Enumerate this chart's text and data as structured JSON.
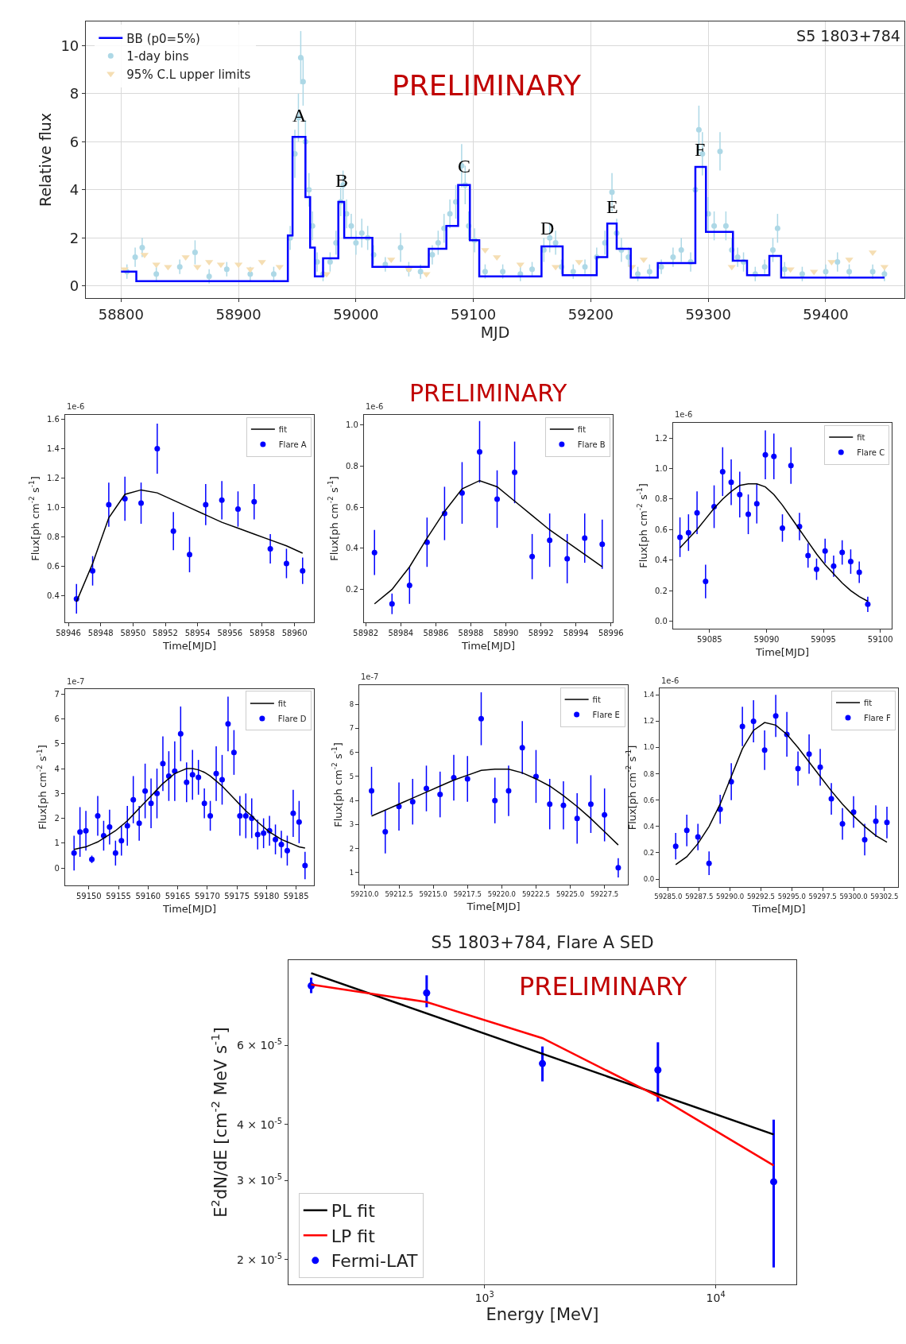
{
  "chart_data": [
    {
      "type": "step",
      "title": "S5 1803+784",
      "xlabel": "MJD",
      "ylabel": "Relative flux",
      "xlim": [
        58770,
        59467
      ],
      "xticks": [
        58800,
        58900,
        59000,
        59100,
        59200,
        59300,
        59400
      ],
      "ylim": [
        -0.5,
        11
      ],
      "yticks": [
        0,
        2,
        4,
        6,
        8,
        10
      ],
      "grid": true,
      "legend": "top left",
      "annotations": [
        {
          "text": "A",
          "x": 58952,
          "y": 6.6
        },
        {
          "text": "B",
          "x": 58988,
          "y": 3.9
        },
        {
          "text": "C",
          "x": 59092,
          "y": 4.5
        },
        {
          "text": "D",
          "x": 59163,
          "y": 1.9
        },
        {
          "text": "E",
          "x": 59218,
          "y": 2.8
        },
        {
          "text": "F",
          "x": 59293,
          "y": 5.2
        },
        "PRELIMINARY"
      ],
      "series": [
        {
          "name": "BB (p0=5%)",
          "type": "step",
          "color": "#0000ff",
          "x": [
            58800,
            58813,
            58942,
            58946,
            58957,
            58961,
            58965,
            58972,
            58985,
            58990,
            59014,
            59062,
            59077,
            59087,
            59097,
            59105,
            59158,
            59176,
            59205,
            59214,
            59222,
            59234,
            59257,
            59289,
            59298,
            59321,
            59333,
            59352,
            59362,
            59450
          ],
          "values": [
            0.6,
            0.2,
            2.1,
            6.2,
            3.7,
            1.6,
            0.4,
            1.15,
            3.5,
            2.0,
            0.8,
            1.55,
            2.5,
            4.2,
            1.9,
            0.4,
            1.65,
            0.45,
            1.2,
            2.6,
            1.55,
            0.35,
            0.95,
            4.95,
            2.25,
            1.05,
            0.45,
            1.25,
            0.35,
            0.35
          ]
        },
        {
          "name": "1-day bins",
          "type": "scatter",
          "marker": "circle",
          "color": "#add8e6",
          "x": [
            58805,
            58812,
            58818,
            58830,
            58850,
            58863,
            58875,
            58890,
            58910,
            58930,
            58944,
            58948,
            58951,
            58953,
            58955,
            58957,
            58960,
            58963,
            58967,
            58972,
            58978,
            58983,
            58987,
            58989,
            58992,
            58996,
            59000,
            59005,
            59010,
            59015,
            59025,
            59038,
            59045,
            59055,
            59065,
            59070,
            59075,
            59080,
            59085,
            59090,
            59093,
            59096,
            59101,
            59110,
            59125,
            59140,
            59150,
            59160,
            59165,
            59170,
            59175,
            59185,
            59195,
            59205,
            59212,
            59218,
            59222,
            59226,
            59232,
            59240,
            59250,
            59260,
            59270,
            59277,
            59285,
            59289,
            59292,
            59295,
            59300,
            59305,
            59310,
            59315,
            59320,
            59325,
            59330,
            59340,
            59348,
            59355,
            59359,
            59365,
            59380,
            59400,
            59410,
            59420,
            59440,
            59450
          ],
          "values": [
            0.6,
            1.2,
            1.6,
            0.5,
            0.8,
            1.4,
            0.4,
            0.7,
            0.5,
            0.5,
            2.0,
            5.5,
            7.0,
            9.5,
            8.5,
            6.0,
            4.0,
            2.5,
            1.0,
            0.5,
            1.0,
            1.8,
            3.5,
            4.2,
            3.0,
            2.5,
            1.8,
            2.2,
            2.0,
            1.3,
            0.9,
            1.6,
            0.7,
            0.6,
            1.3,
            1.8,
            2.4,
            3.0,
            3.5,
            5.0,
            4.2,
            2.5,
            1.9,
            0.6,
            0.6,
            0.5,
            0.7,
            1.5,
            2.0,
            1.8,
            0.8,
            0.6,
            0.8,
            1.2,
            1.8,
            3.9,
            2.2,
            1.5,
            1.2,
            0.5,
            0.6,
            0.8,
            1.2,
            1.5,
            1.0,
            4.0,
            6.5,
            5.5,
            3.0,
            2.5,
            5.6,
            2.5,
            1.5,
            1.2,
            1.0,
            0.5,
            0.8,
            1.5,
            2.4,
            0.7,
            0.5,
            0.6,
            1.0,
            0.6,
            0.6,
            0.5
          ],
          "errors": [
            0.3,
            0.4,
            0.4,
            0.3,
            0.3,
            0.5,
            0.3,
            0.3,
            0.3,
            0.3,
            0.5,
            1.0,
            1.0,
            1.1,
            1.0,
            0.9,
            0.7,
            0.6,
            0.4,
            0.3,
            0.4,
            0.5,
            0.6,
            0.6,
            0.6,
            0.5,
            0.5,
            0.6,
            0.5,
            0.4,
            0.3,
            0.6,
            0.3,
            0.3,
            0.4,
            0.5,
            0.6,
            0.6,
            0.7,
            0.9,
            0.8,
            0.6,
            0.5,
            0.3,
            0.3,
            0.3,
            0.3,
            0.5,
            0.6,
            0.5,
            0.3,
            0.3,
            0.3,
            0.4,
            0.5,
            0.8,
            0.6,
            0.5,
            0.4,
            0.3,
            0.3,
            0.3,
            0.4,
            0.5,
            0.4,
            0.8,
            1.0,
            0.9,
            0.7,
            0.6,
            0.8,
            0.6,
            0.5,
            0.4,
            0.4,
            0.3,
            0.3,
            0.5,
            0.6,
            0.3,
            0.3,
            0.3,
            0.4,
            0.3,
            0.3,
            0.3
          ]
        },
        {
          "name": "95% C.L upper limits",
          "type": "scatter",
          "marker": "triangle",
          "color": "#f5deb3",
          "x": [
            58803,
            58820,
            58830,
            58840,
            58855,
            58865,
            58875,
            58885,
            58900,
            58910,
            58920,
            58935,
            58975,
            59030,
            59045,
            59060,
            59110,
            59120,
            59140,
            59170,
            59190,
            59235,
            59245,
            59320,
            59370,
            59390,
            59405,
            59420,
            59440,
            59450
          ],
          "values": [
            0.7,
            1.3,
            0.9,
            0.8,
            1.2,
            0.8,
            1.0,
            0.9,
            0.9,
            0.7,
            1.0,
            0.8,
            0.5,
            1.1,
            0.7,
            0.5,
            1.5,
            1.2,
            0.9,
            0.8,
            1.0,
            0.8,
            1.1,
            0.8,
            0.7,
            0.6,
            1.0,
            1.1,
            1.4,
            0.8
          ]
        }
      ]
    },
    {
      "type": "scatter",
      "xlabel": "Time[MJD]",
      "ylabel": "Flux[ph cm$^{-2}$ s$^{-1}$]",
      "annotations": [
        "1e-6"
      ],
      "legend": "top right",
      "x": [
        58946.5,
        58947.5,
        58948.5,
        58949.5,
        58950.5,
        58951.5,
        58952.5,
        58953.5,
        58954.5,
        58955.5,
        58956.5,
        58957.5,
        58958.5,
        58959.5,
        58960.5
      ],
      "xlim": [
        58945.8,
        58961.2
      ],
      "xticks": [
        58946,
        58948,
        58950,
        58952,
        58954,
        58956,
        58958,
        58960
      ],
      "ylim": [
        0.22,
        1.63
      ],
      "yticks": [
        0.4,
        0.6,
        0.8,
        {
          "value": 1,
          "label": "1.0"
        },
        1.2,
        1.4,
        1.6
      ],
      "series": [
        {
          "name": "fit",
          "type": "line",
          "color": "#000000",
          "values": [
            0.36,
            0.62,
            0.93,
            1.09,
            1.12,
            1.1,
            1.05,
            1.0,
            0.95,
            0.9,
            0.86,
            0.82,
            0.78,
            0.74,
            0.69
          ]
        },
        {
          "name": "Flare A",
          "marker": "circle",
          "color": "#0000ff",
          "values": [
            0.38,
            0.57,
            1.02,
            1.06,
            1.03,
            1.4,
            0.84,
            0.68,
            1.02,
            1.05,
            0.99,
            1.04,
            0.72,
            0.62,
            0.57
          ],
          "errors": [
            0.1,
            0.1,
            0.15,
            0.15,
            0.14,
            0.17,
            0.13,
            0.12,
            0.14,
            0.13,
            0.12,
            0.12,
            0.1,
            0.1,
            0.09
          ]
        }
      ]
    },
    {
      "type": "scatter",
      "xlabel": "Time[MJD]",
      "ylabel": "Flux[ph cm$^{-2}$ s$^{-1}$]",
      "annotations": [
        "1e-6",
        "PRELIMINARY"
      ],
      "legend": "top right",
      "x": [
        58982.5,
        58983.5,
        58984.5,
        58985.5,
        58986.5,
        58987.5,
        58988.5,
        58989.5,
        58990.5,
        58991.5,
        58992.5,
        58993.5,
        58994.5,
        58995.5
      ],
      "xlim": [
        58981.9,
        58996.1
      ],
      "xticks": [
        58982,
        58984,
        58986,
        58988,
        58990,
        58992,
        58994,
        58996
      ],
      "ylim": [
        0.04,
        1.05
      ],
      "yticks": [
        0.2,
        0.4,
        0.6,
        0.8,
        {
          "value": 1,
          "label": "1.0"
        }
      ],
      "series": [
        {
          "name": "fit",
          "type": "line",
          "color": "#000000",
          "values": [
            0.13,
            0.2,
            0.31,
            0.45,
            0.58,
            0.69,
            0.73,
            0.7,
            0.63,
            0.56,
            0.49,
            0.43,
            0.37,
            0.31
          ]
        },
        {
          "name": "Flare B",
          "marker": "circle",
          "color": "#0000ff",
          "values": [
            0.38,
            0.13,
            0.22,
            0.43,
            0.57,
            0.67,
            0.87,
            0.64,
            0.77,
            0.36,
            0.44,
            0.35,
            0.45,
            0.42
          ],
          "errors": [
            0.11,
            0.05,
            0.09,
            0.12,
            0.13,
            0.15,
            0.15,
            0.14,
            0.15,
            0.11,
            0.13,
            0.12,
            0.12,
            0.12
          ]
        }
      ]
    },
    {
      "type": "scatter",
      "xlabel": "Time[MJD]",
      "ylabel": "Flux[ph cm$^{-2}$ s$^{-1}$]",
      "annotations": [
        "1e-6"
      ],
      "legend": "top right",
      "x": [
        59082.4,
        59083.15,
        59083.9,
        59084.65,
        59085.4,
        59086.15,
        59086.9,
        59087.65,
        59088.4,
        59089.15,
        59089.9,
        59090.65,
        59091.4,
        59092.15,
        59092.9,
        59093.65,
        59094.4,
        59095.15,
        59095.9,
        59096.65,
        59097.4,
        59098.15,
        59098.9
      ],
      "xlim": [
        59081.8,
        59101
      ],
      "xticks": [
        59085,
        59090,
        59095,
        59100
      ],
      "ylim": [
        -0.05,
        1.3
      ],
      "yticks": [
        {
          "value": 0,
          "label": "0.0"
        },
        0.2,
        0.4,
        0.6,
        0.8,
        {
          "value": 1,
          "label": "1.0"
        },
        1.2
      ],
      "series": [
        {
          "name": "fit",
          "type": "line",
          "color": "#000000",
          "values": [
            0.48,
            0.54,
            0.6,
            0.67,
            0.74,
            0.8,
            0.85,
            0.89,
            0.9,
            0.9,
            0.88,
            0.83,
            0.76,
            0.68,
            0.6,
            0.52,
            0.44,
            0.37,
            0.31,
            0.25,
            0.2,
            0.16,
            0.13
          ]
        },
        {
          "name": "Flare C",
          "marker": "circle",
          "color": "#0000ff",
          "values": [
            0.55,
            0.58,
            0.71,
            0.26,
            0.75,
            0.98,
            0.91,
            0.83,
            0.7,
            0.77,
            1.09,
            1.08,
            0.61,
            1.02,
            0.62,
            0.43,
            0.34,
            0.46,
            0.36,
            0.45,
            0.39,
            0.32,
            0.11
          ],
          "errors": [
            0.13,
            0.12,
            0.14,
            0.11,
            0.14,
            0.16,
            0.15,
            0.15,
            0.13,
            0.13,
            0.16,
            0.15,
            0.09,
            0.12,
            0.09,
            0.08,
            0.07,
            0.08,
            0.07,
            0.08,
            0.08,
            0.07,
            0.05
          ]
        }
      ]
    },
    {
      "type": "scatter",
      "xlabel": "Time[MJD]",
      "ylabel": "Flux[ph cm$^{-2}$ s$^{-1}$]",
      "annotations": [
        "1e-7"
      ],
      "legend": "top right",
      "x": [
        59147.5,
        59148.5,
        59149.5,
        59150.5,
        59151.5,
        59152.5,
        59153.5,
        59154.5,
        59155.5,
        59156.5,
        59157.5,
        59158.5,
        59159.5,
        59160.5,
        59161.5,
        59162.5,
        59163.5,
        59164.5,
        59165.5,
        59166.5,
        59167.5,
        59168.5,
        59169.5,
        59170.5,
        59171.5,
        59172.5,
        59173.5,
        59174.5,
        59175.5,
        59176.5,
        59177.5,
        59178.5,
        59179.5,
        59180.5,
        59181.5,
        59182.5,
        59183.5,
        59184.5,
        59185.5,
        59186.5
      ],
      "xlim": [
        59146,
        59188
      ],
      "xticks": [
        59150,
        59155,
        59160,
        59165,
        59170,
        59175,
        59180,
        59185
      ],
      "ylim": [
        -0.7,
        7.2
      ],
      "yticks": [
        0,
        1,
        2,
        3,
        4,
        5,
        6,
        7
      ],
      "series": [
        {
          "name": "fit",
          "type": "line",
          "color": "#000000",
          "values": [
            0.75,
            0.8,
            0.85,
            0.95,
            1.05,
            1.2,
            1.35,
            1.5,
            1.7,
            1.9,
            2.15,
            2.4,
            2.65,
            2.9,
            3.15,
            3.4,
            3.6,
            3.8,
            3.9,
            4.0,
            4.0,
            3.95,
            3.85,
            3.7,
            3.5,
            3.3,
            3.05,
            2.8,
            2.55,
            2.3,
            2.1,
            1.85,
            1.65,
            1.45,
            1.3,
            1.15,
            1.05,
            0.95,
            0.85,
            0.8
          ]
        },
        {
          "name": "Flare D",
          "marker": "circle",
          "color": "#0000ff",
          "values": [
            0.6,
            1.45,
            1.5,
            0.35,
            2.1,
            1.3,
            1.65,
            0.6,
            1.1,
            1.7,
            2.75,
            1.8,
            3.1,
            2.6,
            3.0,
            4.2,
            3.7,
            3.9,
            5.4,
            3.45,
            3.75,
            3.65,
            2.6,
            2.1,
            3.8,
            3.55,
            5.8,
            4.65,
            2.1,
            2.1,
            2.0,
            1.35,
            1.4,
            1.5,
            1.15,
            0.95,
            0.7,
            2.2,
            1.85,
            0.1
          ],
          "errors": [
            0.7,
            1.0,
            0.8,
            0.15,
            0.8,
            0.6,
            0.7,
            0.5,
            0.6,
            0.8,
            0.95,
            0.7,
            1.1,
            1.0,
            1.0,
            1.1,
            1.0,
            1.2,
            1.1,
            0.8,
            1.0,
            0.7,
            0.6,
            0.6,
            1.1,
            1.0,
            1.1,
            0.9,
            0.8,
            0.9,
            0.8,
            0.6,
            0.6,
            0.6,
            0.6,
            0.55,
            0.6,
            0.95,
            0.85,
            0.55
          ]
        }
      ]
    },
    {
      "type": "scatter",
      "xlabel": "Time[MJD]",
      "ylabel": "Flux[ph cm$^{-2}$ s$^{-1}$]",
      "annotations": [
        "1e-7"
      ],
      "legend": "top right",
      "x": [
        59210.5,
        59211.5,
        59212.5,
        59213.5,
        59214.5,
        59215.5,
        59216.5,
        59217.5,
        59218.5,
        59219.5,
        59220.5,
        59221.5,
        59222.5,
        59223.5,
        59224.5,
        59225.5,
        59226.5,
        59227.5,
        59228.5
      ],
      "xlim": [
        59209.6,
        59229.2
      ],
      "xticks": [
        {
          "value": 59210,
          "label": "59210.0"
        },
        59212.5,
        {
          "value": 59215,
          "label": "59215.0"
        },
        59217.5,
        {
          "value": 59220,
          "label": "59220.0"
        },
        59222.5,
        {
          "value": 59225,
          "label": "59225.0"
        },
        59227.5
      ],
      "ylim": [
        0.5,
        8.8
      ],
      "yticks": [
        1,
        2,
        3,
        4,
        5,
        6,
        7,
        8
      ],
      "series": [
        {
          "name": "fit",
          "type": "line",
          "color": "#000000",
          "values": [
            3.35,
            3.6,
            3.85,
            4.1,
            4.35,
            4.6,
            4.85,
            5.05,
            5.25,
            5.3,
            5.3,
            5.15,
            4.9,
            4.6,
            4.2,
            3.75,
            3.25,
            2.7,
            2.15
          ]
        },
        {
          "name": "Flare E",
          "marker": "circle",
          "color": "#0000ff",
          "values": [
            4.4,
            2.7,
            3.75,
            3.95,
            4.5,
            4.25,
            4.95,
            4.9,
            7.4,
            4.0,
            4.4,
            6.2,
            5.0,
            3.85,
            3.8,
            3.25,
            3.85,
            3.4,
            1.2
          ],
          "errors": [
            1.0,
            0.9,
            1.0,
            0.95,
            0.95,
            0.95,
            0.95,
            0.95,
            1.1,
            0.95,
            1.05,
            1.1,
            1.1,
            1.05,
            1.0,
            1.05,
            1.2,
            1.1,
            0.4
          ]
        }
      ]
    },
    {
      "type": "scatter",
      "xlabel": "Time[MJD]",
      "ylabel": "Flux[ph cm$^{-2}$ s$^{-1}$]",
      "annotations": [
        "1e-6"
      ],
      "legend": "top right",
      "x": [
        59285.6,
        59286.5,
        59287.4,
        59288.3,
        59289.2,
        59290.1,
        59291.0,
        59291.9,
        59292.8,
        59293.7,
        59294.6,
        59295.5,
        59296.4,
        59297.3,
        59298.2,
        59299.1,
        59300.0,
        59300.9,
        59301.8,
        59302.7
      ],
      "xlim": [
        59284.3,
        59303.6
      ],
      "xticks": [
        {
          "value": 59285,
          "label": "59285.0"
        },
        59287.5,
        {
          "value": 59290,
          "label": "59290.0"
        },
        59292.5,
        {
          "value": 59295,
          "label": "59295.0"
        },
        59297.5,
        {
          "value": 59300,
          "label": "59300.0"
        },
        59302.5
      ],
      "ylim": [
        -0.06,
        1.45
      ],
      "yticks": [
        {
          "value": 0,
          "label": "0.0"
        },
        0.2,
        0.4,
        0.6,
        0.8,
        {
          "value": 1,
          "label": "1.0"
        },
        1.2,
        1.4
      ],
      "series": [
        {
          "name": "fit",
          "type": "line",
          "color": "#000000",
          "values": [
            0.11,
            0.17,
            0.27,
            0.4,
            0.57,
            0.78,
            0.99,
            1.13,
            1.19,
            1.17,
            1.1,
            1.0,
            0.89,
            0.78,
            0.67,
            0.57,
            0.48,
            0.4,
            0.33,
            0.28
          ]
        },
        {
          "name": "Flare F",
          "marker": "circle",
          "color": "#0000ff",
          "values": [
            0.25,
            0.37,
            0.32,
            0.12,
            0.53,
            0.74,
            1.16,
            1.2,
            0.98,
            1.24,
            1.1,
            0.84,
            0.95,
            0.85,
            0.61,
            0.42,
            0.51,
            0.3,
            0.44,
            0.43
          ],
          "errors": [
            0.1,
            0.12,
            0.1,
            0.09,
            0.11,
            0.14,
            0.15,
            0.16,
            0.15,
            0.16,
            0.17,
            0.13,
            0.15,
            0.14,
            0.12,
            0.12,
            0.12,
            0.12,
            0.12,
            0.12
          ]
        }
      ]
    },
    {
      "type": "scatter",
      "title": "S5 1803+784, Flare A SED",
      "xlabel": "Energy [MeV]",
      "ylabel": "E$^{2}$dN/dE [cm$^{-2}$ MeV s$^{-1}$]",
      "annotations": [
        "PRELIMINARY"
      ],
      "log": "xy",
      "grid": "x",
      "legend": "bottom left",
      "xlim": [
        142,
        22300
      ],
      "xticks": [
        {
          "value": 1000,
          "label": "10$^{3}$"
        },
        {
          "value": 10000,
          "label": "10$^{4}$"
        }
      ],
      "ylim": [
        1.76e-05,
        9.3e-05
      ],
      "yticks": [
        {
          "value": 2e-05,
          "label": "2 × 10$^{-5}$"
        },
        {
          "value": 3e-05,
          "label": "3 × 10$^{-5}$"
        },
        {
          "value": 4e-05,
          "label": "4 × 10$^{-5}$"
        },
        {
          "value": 6e-05,
          "label": "6 × 10$^{-5}$"
        }
      ],
      "series": [
        {
          "name": "PL fit",
          "type": "line",
          "color": "#000000",
          "x": [
            178,
            17800
          ],
          "values": [
            8.7e-05,
            3.8e-05
          ]
        },
        {
          "name": "LP fit",
          "type": "line",
          "color": "#ff0000",
          "x": [
            178,
            562,
            1780,
            5620,
            17800
          ],
          "values": [
            8.2e-05,
            7.5e-05,
            6.23e-05,
            4.62e-05,
            3.24e-05
          ]
        },
        {
          "name": "Fermi-LAT",
          "marker": "circle",
          "color": "#0000ff",
          "x": [
            178,
            562,
            1780,
            5620,
            17800
          ],
          "values": [
            8.15e-05,
            7.86e-05,
            5.47e-05,
            5.29e-05,
            2.98e-05
          ],
          "errors": [
            [
              7.85e-05,
              8.5e-05
            ],
            [
              7.3e-05,
              8.6e-05
            ],
            [
              4.99e-05,
              5.97e-05
            ],
            [
              4.5e-05,
              6.1e-05
            ],
            [
              1.92e-05,
              4.1e-05
            ]
          ]
        }
      ]
    }
  ]
}
